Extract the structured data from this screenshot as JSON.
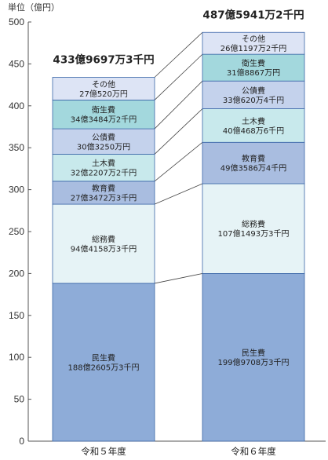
{
  "chart_data": {
    "type": "bar",
    "stacked": true,
    "unit_label": "単位（億円）",
    "ylim": [
      0,
      500
    ],
    "y_ticks": [
      0,
      50,
      100,
      150,
      200,
      250,
      300,
      350,
      400,
      450,
      500
    ],
    "grid": false,
    "categories": [
      "令和５年度",
      "令和６年度"
    ],
    "totals": [
      {
        "label": "433億9697万3千円",
        "value": 433.97
      },
      {
        "label": "487億5941万2千円",
        "value": 487.59
      }
    ],
    "series": [
      {
        "name": "民生費",
        "color": "#8eacd8",
        "values": [
          188.26,
          199.97
        ],
        "labels": [
          "188億2605万3千円",
          "199億9708万3千円"
        ]
      },
      {
        "name": "総務費",
        "color": "#e6f3f6",
        "values": [
          94.42,
          107.15
        ],
        "labels": [
          "94億4158万3千円",
          "107億1493万3千円"
        ]
      },
      {
        "name": "教育費",
        "color": "#a9bde0",
        "values": [
          27.35,
          49.36
        ],
        "labels": [
          "27億3472万3千円",
          "49億3586万4千円"
        ]
      },
      {
        "name": "土木費",
        "color": "#c8e9ec",
        "values": [
          32.22,
          40.05
        ],
        "labels": [
          "32億2207万2千円",
          "40億468万6千円"
        ]
      },
      {
        "name": "公債費",
        "color": "#c4d2ec",
        "values": [
          30.33,
          33.06
        ],
        "labels": [
          "30億3250万円",
          "33億620万4千円"
        ]
      },
      {
        "name": "衛生費",
        "color": "#a3d8dd",
        "values": [
          34.35,
          31.89
        ],
        "labels": [
          "34億3484万2千円",
          "31億8867万円"
        ]
      },
      {
        "name": "その他",
        "color": "#dde4f5",
        "values": [
          27.05,
          26.12
        ],
        "labels": [
          "27億520万円",
          "26億1197万2千円"
        ]
      }
    ]
  }
}
